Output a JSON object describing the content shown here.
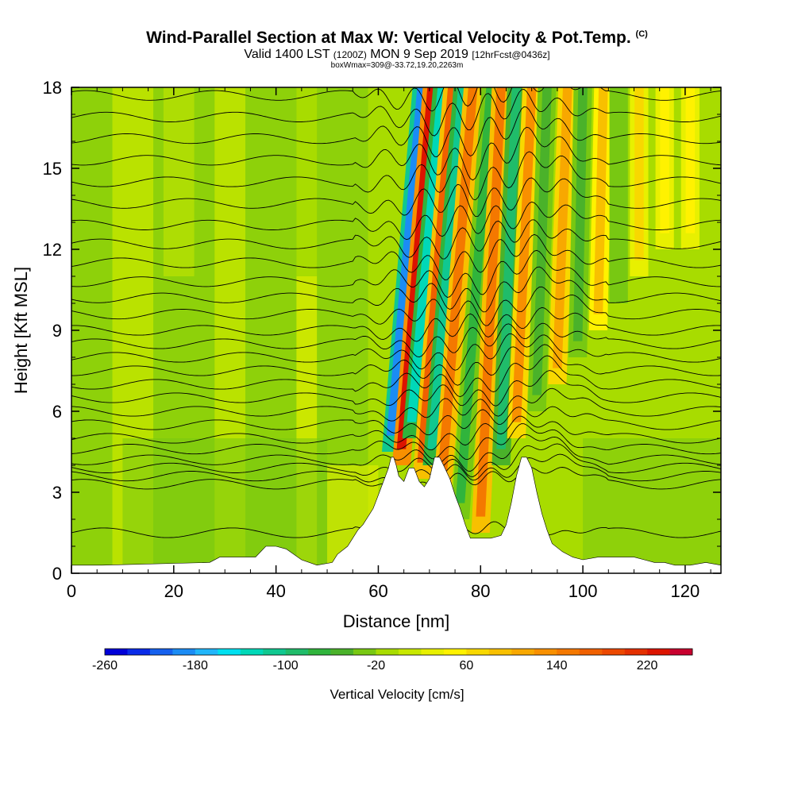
{
  "header": {
    "title": "Wind-Parallel Section at Max W: Vertical Velocity & Pot.Temp.",
    "title_mark": "(C)",
    "subtitle_a": "Valid 1400 LST",
    "subtitle_b": "(1200Z)",
    "subtitle_c": "MON 9 Sep 2019",
    "subtitle_d": "[12hrFcst@0436z]",
    "subline": "boxWmax=309@-33.72,19.20,2263m"
  },
  "chart_data": {
    "type": "heatmap",
    "title": "Wind-Parallel Section at Max W: Vertical Velocity & Pot.Temp.",
    "xlabel": "Distance [nm]",
    "ylabel": "Height [Kft MSL]",
    "xlim": [
      0,
      127
    ],
    "ylim": [
      0,
      18
    ],
    "x_ticks": [
      0,
      20,
      40,
      60,
      80,
      100,
      120
    ],
    "y_ticks": [
      0,
      3,
      6,
      9,
      12,
      15,
      18
    ],
    "colorbar": {
      "label": "Vertical Velocity [cm/s]",
      "range": [
        -260,
        260
      ],
      "step": 20,
      "tick_values": [
        -260,
        -180,
        -100,
        -20,
        60,
        140,
        220
      ],
      "colors": [
        "#0000d8",
        "#0a2be8",
        "#1560ee",
        "#1b8cf4",
        "#21b6fa",
        "#00e0f0",
        "#00d8b8",
        "#10c890",
        "#20bc6a",
        "#30b43c",
        "#4ab22a",
        "#78c812",
        "#a8dc00",
        "#c8e800",
        "#e8f000",
        "#fff200",
        "#f8d800",
        "#f8c000",
        "#f8a800",
        "#f89000",
        "#f47800",
        "#f06000",
        "#ec4800",
        "#e43000",
        "#dc1400",
        "#c8002e"
      ]
    },
    "series": [
      {
        "name": "Terrain height (Kft)",
        "x": [
          0,
          6,
          27,
          29,
          36,
          38,
          40,
          42,
          45,
          48,
          51,
          52,
          54,
          56,
          57,
          59,
          60,
          61,
          62,
          62.5,
          63,
          63.5,
          64,
          65,
          66,
          67,
          68,
          69,
          70,
          71,
          72,
          73,
          74,
          75,
          76,
          77,
          78,
          79,
          80,
          82,
          84,
          85,
          86,
          87,
          88,
          89,
          90,
          91,
          92,
          93,
          94,
          96,
          98,
          100,
          103,
          110,
          112,
          114,
          116,
          118,
          121,
          124,
          127
        ],
        "values": [
          0.3,
          0.3,
          0.4,
          0.6,
          0.6,
          1.0,
          1.0,
          0.9,
          0.5,
          0.3,
          0.4,
          0.7,
          1.0,
          1.6,
          1.8,
          2.4,
          2.9,
          3.4,
          3.9,
          4.3,
          4.3,
          4.0,
          3.6,
          3.4,
          3.9,
          3.9,
          3.4,
          3.2,
          3.5,
          4.3,
          4.3,
          3.9,
          3.5,
          2.9,
          2.4,
          1.8,
          1.3,
          1.3,
          1.3,
          1.3,
          1.4,
          1.8,
          2.6,
          3.6,
          4.3,
          4.3,
          3.9,
          3.0,
          2.2,
          1.6,
          1.1,
          0.8,
          0.6,
          0.5,
          0.6,
          0.6,
          0.5,
          0.4,
          0.4,
          0.3,
          0.3,
          0.4,
          0.3
        ]
      }
    ],
    "vertical_velocity_features": [
      {
        "x": 62.5,
        "y_range": [
          4.5,
          18
        ],
        "peak_cm_s": -200,
        "tilt_nm": 6
      },
      {
        "x": 64.5,
        "y_range": [
          4.0,
          18
        ],
        "peak_cm_s": 230,
        "tilt_nm": 6
      },
      {
        "x": 66.5,
        "y_range": [
          5.0,
          18
        ],
        "peak_cm_s": -140,
        "tilt_nm": 6
      },
      {
        "x": 68.5,
        "y_range": [
          3.5,
          18
        ],
        "peak_cm_s": 160,
        "tilt_nm": 6
      },
      {
        "x": 70.5,
        "y_range": [
          4.0,
          18
        ],
        "peak_cm_s": -110,
        "tilt_nm": 6
      },
      {
        "x": 72.5,
        "y_range": [
          3.0,
          18
        ],
        "peak_cm_s": 150,
        "tilt_nm": 6
      },
      {
        "x": 76,
        "y_range": [
          2.0,
          18
        ],
        "peak_cm_s": -70,
        "tilt_nm": 6
      },
      {
        "x": 80,
        "y_range": [
          1.5,
          18
        ],
        "peak_cm_s": 150,
        "tilt_nm": 4
      },
      {
        "x": 84,
        "y_range": [
          4.0,
          18
        ],
        "peak_cm_s": -90,
        "tilt_nm": 3
      },
      {
        "x": 87,
        "y_range": [
          5.0,
          18
        ],
        "peak_cm_s": 130,
        "tilt_nm": 3
      },
      {
        "x": 91,
        "y_range": [
          6.0,
          18
        ],
        "peak_cm_s": -60,
        "tilt_nm": 2
      },
      {
        "x": 95,
        "y_range": [
          7.0,
          18
        ],
        "peak_cm_s": 110,
        "tilt_nm": 2
      },
      {
        "x": 99,
        "y_range": [
          8.0,
          18
        ],
        "peak_cm_s": -50,
        "tilt_nm": 1
      },
      {
        "x": 103,
        "y_range": [
          9.0,
          18
        ],
        "peak_cm_s": 90,
        "tilt_nm": 1
      },
      {
        "x": 107,
        "y_range": [
          10.0,
          18
        ],
        "peak_cm_s": -40,
        "tilt_nm": 0
      },
      {
        "x": 111,
        "y_range": [
          11.0,
          18
        ],
        "peak_cm_s": 70,
        "tilt_nm": 0
      },
      {
        "x": 116,
        "y_range": [
          12.0,
          18
        ],
        "peak_cm_s": 50,
        "tilt_nm": 0
      },
      {
        "x": 121,
        "y_range": [
          12.0,
          18
        ],
        "peak_cm_s": 40,
        "tilt_nm": 0
      }
    ],
    "theta_contour_base_heights_kft": [
      1.5,
      3.3,
      3.6,
      3.9,
      4.2,
      4.6,
      5.0,
      5.5,
      6.0,
      6.5,
      7.0,
      7.5,
      8.0,
      8.5,
      9.0,
      9.6,
      10.2,
      10.8,
      11.5,
      12.2,
      12.9,
      13.7,
      14.5,
      15.3,
      16.1,
      16.9,
      17.7
    ]
  }
}
